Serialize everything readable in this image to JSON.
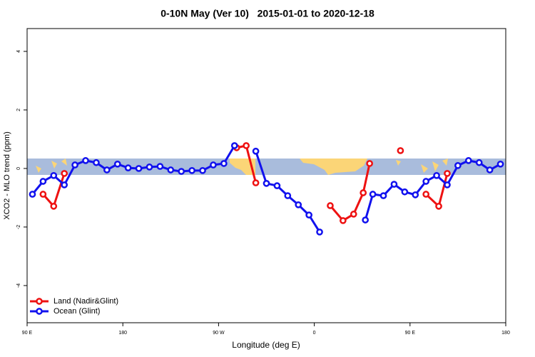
{
  "chart_data": {
    "type": "line",
    "title": "0-10N May (Ver 10)   2015-01-01 to 2020-12-18",
    "x_label": "Longitude (deg E)",
    "y_label": "XCO2 - MLO trend (ppm)",
    "xlim": [
      90,
      540
    ],
    "xticks": [
      {
        "value": 90,
        "label": "90 E"
      },
      180,
      {
        "value": 270,
        "label": "90 W"
      },
      {
        "value": 360,
        "label": "0"
      },
      {
        "value": 450,
        "label": "90 E"
      },
      {
        "value": 540,
        "label": "180"
      }
    ],
    "ylim": [
      -5.27,
      4.78
    ],
    "yticks": [
      -4,
      -2,
      0,
      2,
      4
    ],
    "legend": "bottom left",
    "series": [
      {
        "name": "Land (Nadir&Glint)",
        "color": "#ee1111",
        "x": [
          105,
          115,
          125,
          null,
          287,
          296,
          305,
          null,
          375,
          387,
          397,
          406,
          412,
          null,
          441,
          null,
          465,
          477,
          485
        ],
        "values": [
          -0.88,
          -1.29,
          -0.17,
          null,
          0.71,
          0.78,
          -0.49,
          null,
          -1.27,
          -1.78,
          -1.56,
          -0.83,
          0.17,
          null,
          0.61,
          null,
          -0.88,
          -1.29,
          -0.17
        ]
      },
      {
        "name": "Ocean (Glint)",
        "color": "#1111ee",
        "x": [
          95,
          105,
          115,
          125,
          135,
          145,
          155,
          165,
          175,
          185,
          195,
          205,
          215,
          225,
          235,
          245,
          255,
          265,
          275,
          285,
          null,
          305,
          315,
          325,
          335,
          345,
          355,
          365,
          null,
          408,
          415,
          425,
          435,
          445,
          455,
          465,
          475,
          485,
          495,
          505,
          515,
          525,
          535
        ],
        "values": [
          -0.88,
          -0.44,
          -0.24,
          -0.56,
          0.12,
          0.27,
          0.2,
          -0.05,
          0.15,
          0.02,
          0,
          0.05,
          0.07,
          -0.05,
          -0.1,
          -0.07,
          -0.07,
          0.12,
          0.17,
          0.78,
          null,
          0.59,
          -0.51,
          -0.59,
          -0.93,
          -1.24,
          -1.59,
          -2.17,
          null,
          -1.76,
          -0.88,
          -0.93,
          -0.54,
          -0.8,
          -0.9,
          -0.44,
          -0.24,
          -0.56,
          0.1,
          0.27,
          0.2,
          -0.05,
          0.15
        ]
      }
    ]
  }
}
